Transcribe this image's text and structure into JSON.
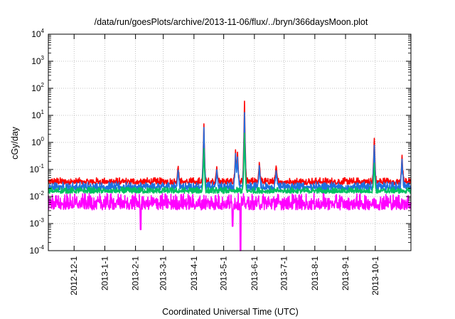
{
  "chart_data": {
    "type": "line",
    "title": "/data/run/goesPlots/archive/2013-11-06/flux/../bryn/366daysMoon.plot",
    "xlabel": "Coordinated Universal Time (UTC)",
    "ylabel": "cGy/day",
    "x_range": [
      "2012-11-05",
      "2013-11-06"
    ],
    "ylim": [
      0.0001,
      10000
    ],
    "y_scale": "log",
    "grid": true,
    "legend": "none",
    "x_ticks": [
      "2012-12-1",
      "2013-1-1",
      "2013-2-1",
      "2013-3-1",
      "2013-4-1",
      "2013-5-1",
      "2013-6-1",
      "2013-7-1",
      "2013-8-1",
      "2013-9-1",
      "2013-10-1"
    ],
    "y_ticks": [
      {
        "base": "10",
        "exp": "4",
        "value": 10000
      },
      {
        "base": "10",
        "exp": "3",
        "value": 1000
      },
      {
        "base": "10",
        "exp": "2",
        "value": 100
      },
      {
        "base": "10",
        "exp": "1",
        "value": 10
      },
      {
        "base": "10",
        "exp": "0",
        "value": 1
      },
      {
        "base": "10",
        "exp": "-1",
        "value": 0.1
      },
      {
        "base": "10",
        "exp": "-2",
        "value": 0.01
      },
      {
        "base": "10",
        "exp": "-3",
        "value": 0.001
      },
      {
        "base": "10",
        "exp": "-4",
        "value": 0.0001
      }
    ],
    "series": [
      {
        "color": "#ff0000",
        "baseline_range": [
          0.025,
          0.05
        ],
        "events": [
          {
            "date": "2013-03-16",
            "value": 0.15
          },
          {
            "date": "2013-04-11",
            "value": 6.0
          },
          {
            "date": "2013-04-24",
            "value": 0.13
          },
          {
            "date": "2013-05-13",
            "value": 0.55
          },
          {
            "date": "2013-05-15",
            "value": 0.45
          },
          {
            "date": "2013-05-22",
            "value": 40
          },
          {
            "date": "2013-06-06",
            "value": 0.2
          },
          {
            "date": "2013-06-23",
            "value": 0.15
          },
          {
            "date": "2013-09-30",
            "value": 1.8
          },
          {
            "date": "2013-10-28",
            "value": 0.35
          }
        ]
      },
      {
        "color": "#1f6fe0",
        "baseline_range": [
          0.015,
          0.035
        ],
        "events": [
          {
            "date": "2013-03-16",
            "value": 0.11
          },
          {
            "date": "2013-04-11",
            "value": 4.5
          },
          {
            "date": "2013-04-24",
            "value": 0.1
          },
          {
            "date": "2013-05-13",
            "value": 0.4
          },
          {
            "date": "2013-05-15",
            "value": 0.3
          },
          {
            "date": "2013-05-22",
            "value": 15
          },
          {
            "date": "2013-06-06",
            "value": 0.15
          },
          {
            "date": "2013-06-23",
            "value": 0.1
          },
          {
            "date": "2013-09-30",
            "value": 1.0
          },
          {
            "date": "2013-10-28",
            "value": 0.25
          }
        ]
      },
      {
        "color": "#00c060",
        "baseline_range": [
          0.012,
          0.022
        ],
        "events": [
          {
            "date": "2013-04-11",
            "value": 0.7
          },
          {
            "date": "2013-05-22",
            "value": 2.5
          },
          {
            "date": "2013-09-30",
            "value": 0.2
          }
        ]
      },
      {
        "color": "#ff00ff",
        "baseline_range": [
          0.0025,
          0.013
        ],
        "events": [
          {
            "date": "2013-02-06",
            "value": 0.0006
          },
          {
            "date": "2013-05-10",
            "value": 0.0008
          },
          {
            "date": "2013-05-18",
            "value": 0.0001
          }
        ]
      }
    ]
  }
}
